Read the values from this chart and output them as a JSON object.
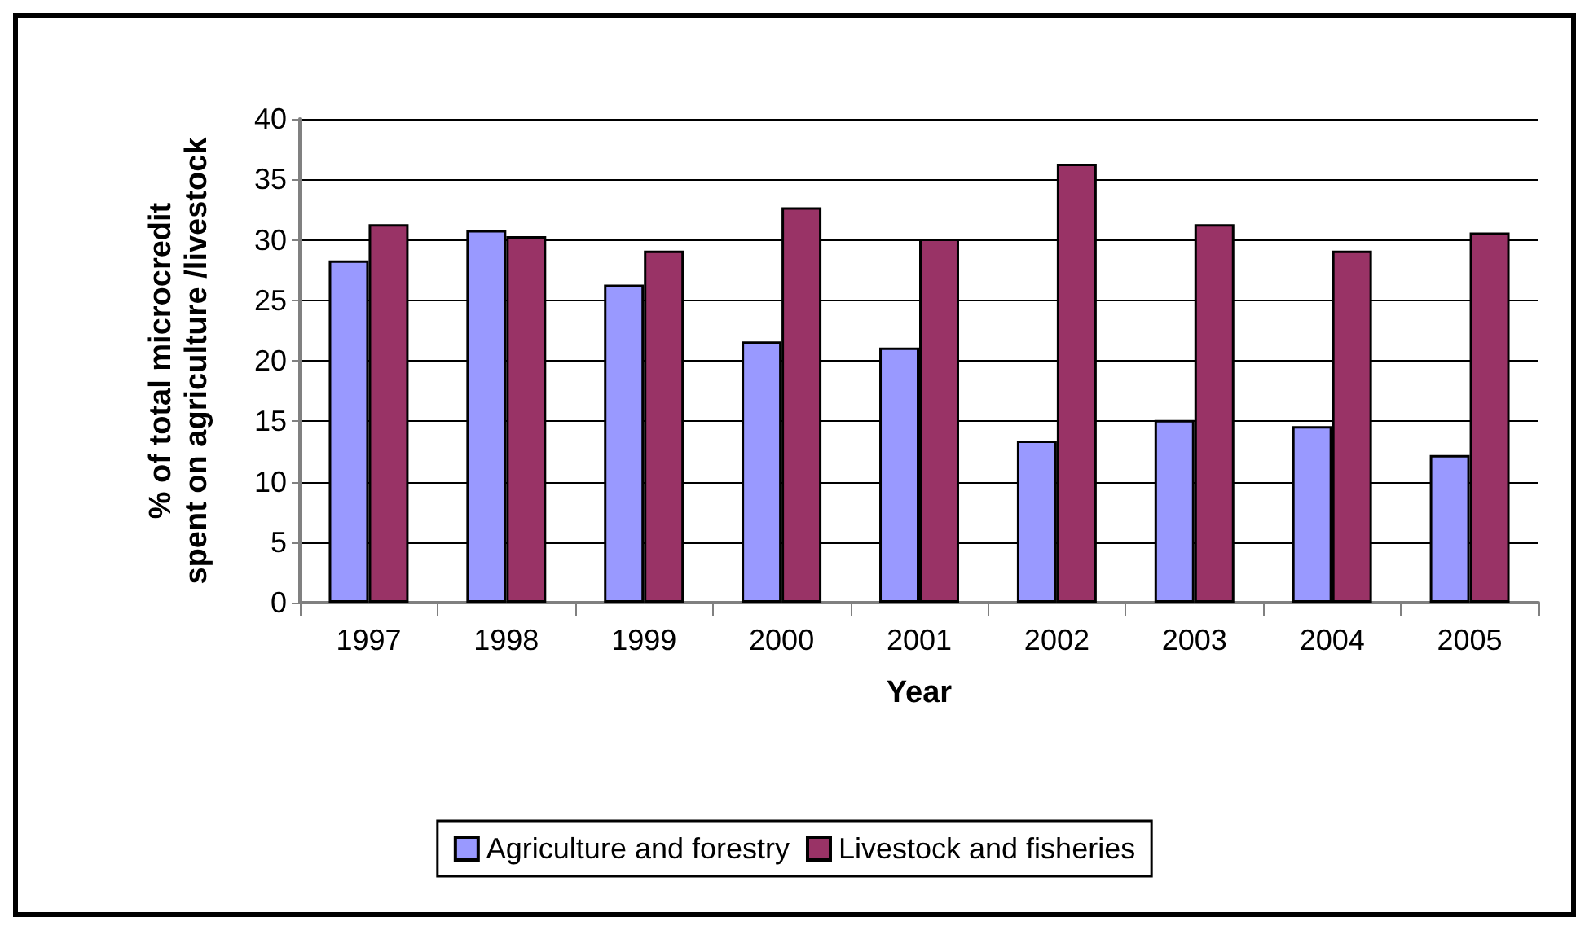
{
  "chart_data": {
    "type": "bar",
    "xlabel": "Year",
    "ylabel": "% of total microcredit spent on agriculture /livestock",
    "categories": [
      "1997",
      "1998",
      "1999",
      "2000",
      "2001",
      "2002",
      "2003",
      "2004",
      "2005"
    ],
    "series": [
      {
        "name": "Agriculture and forestry",
        "color": "#9999ff",
        "values": [
          28.3,
          30.8,
          26.3,
          21.6,
          21.1,
          13.4,
          15.1,
          14.6,
          12.2
        ]
      },
      {
        "name": "Livestock and fisheries",
        "color": "#993366",
        "values": [
          31.3,
          30.3,
          29.1,
          32.7,
          30.1,
          36.3,
          31.3,
          29.1,
          30.6
        ]
      }
    ],
    "ylim": [
      0,
      40
    ],
    "yticks": [
      0,
      5,
      10,
      15,
      20,
      25,
      30,
      35,
      40
    ],
    "grid": "y",
    "legend": "bottom"
  }
}
